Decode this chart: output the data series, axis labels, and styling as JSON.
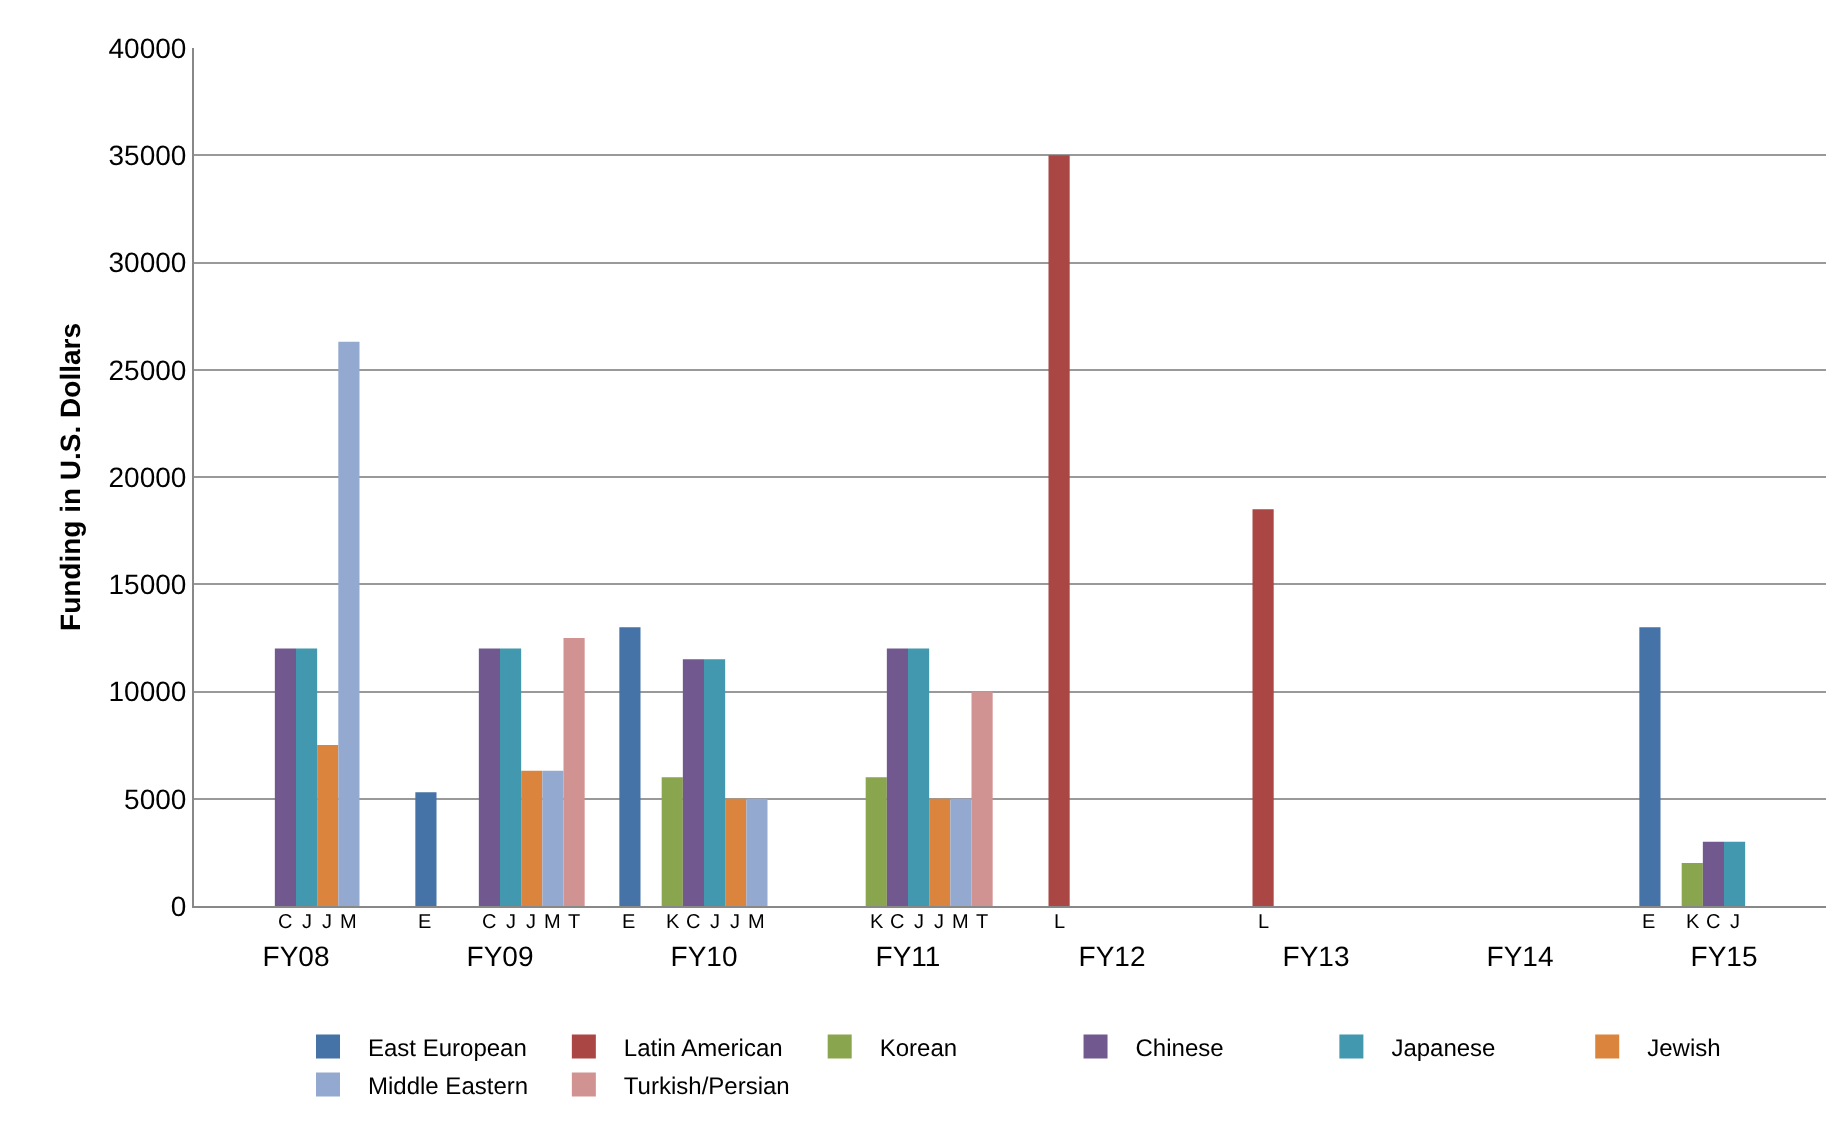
{
  "chart_data": {
    "type": "bar",
    "ylabel": "Funding in U.S. Dollars",
    "categories": [
      "FY08",
      "FY09",
      "FY10",
      "FY11",
      "FY12",
      "FY13",
      "FY14",
      "FY15"
    ],
    "series": [
      {
        "name": "East European",
        "color": "#4572a7",
        "values": [
          null,
          5300,
          13000,
          null,
          null,
          null,
          null,
          13000
        ]
      },
      {
        "name": "Latin American",
        "color": "#aa4643",
        "values": [
          null,
          null,
          null,
          null,
          35000,
          18500,
          null,
          null
        ]
      },
      {
        "name": "Korean",
        "color": "#89a54e",
        "values": [
          null,
          null,
          6000,
          6000,
          null,
          null,
          null,
          2000
        ]
      },
      {
        "name": "Chinese",
        "color": "#71588f",
        "values": [
          12000,
          12000,
          11500,
          12000,
          null,
          null,
          null,
          3000
        ]
      },
      {
        "name": "Japanese",
        "color": "#4198af",
        "values": [
          12000,
          12000,
          11500,
          12000,
          null,
          null,
          null,
          3000
        ]
      },
      {
        "name": "Jewish",
        "color": "#db843d",
        "values": [
          7500,
          6300,
          5000,
          5000,
          null,
          null,
          null,
          null
        ]
      },
      {
        "name": "Middle Eastern",
        "color": "#93a9cf",
        "values": [
          26300,
          6300,
          5000,
          5000,
          null,
          null,
          null,
          null
        ]
      },
      {
        "name": "Turkish/Persian",
        "color": "#d19392",
        "values": [
          null,
          12500,
          null,
          10000,
          null,
          null,
          null,
          null
        ]
      }
    ],
    "ylim": [
      0,
      40000
    ],
    "yticks": [
      0,
      5000,
      10000,
      15000,
      20000,
      25000,
      30000,
      35000,
      40000
    ],
    "grid": "y",
    "legend": "bottom",
    "annotations": [
      "C",
      "J",
      "J",
      "M",
      "E",
      "C",
      "J",
      "J",
      "M",
      "T",
      "E",
      "K",
      "C",
      "J",
      "J",
      "M",
      "K",
      "C",
      "J",
      "J",
      "M",
      "T",
      "L",
      "L",
      "E",
      "K",
      "C",
      "J"
    ]
  }
}
